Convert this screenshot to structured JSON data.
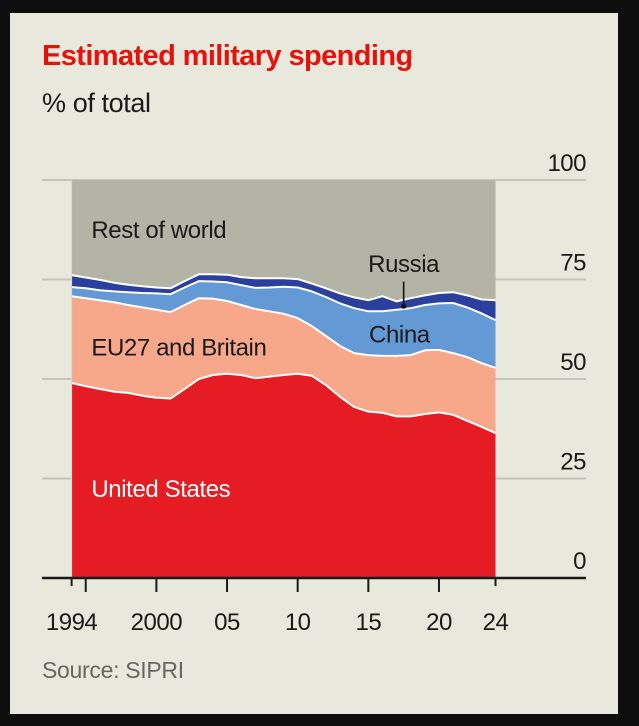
{
  "header": {
    "title": "Estimated military spending",
    "subtitle": "% of total"
  },
  "footer": {
    "source": "Source: SIPRI"
  },
  "colors": {
    "background": "#e9e8dd",
    "title": "#e3120b",
    "united_states": "#e51c24",
    "eu27_britain": "#f7a88a",
    "china": "#6399d4",
    "russia": "#2a3f9e",
    "rest_of_world": "#b3b4a6"
  },
  "chart_data": {
    "type": "area",
    "stacked": true,
    "title": "Estimated military spending",
    "subtitle": "% of total",
    "xlabel": "",
    "ylabel": "% of total",
    "x": [
      1994,
      1995,
      1996,
      1997,
      1998,
      1999,
      2000,
      2001,
      2002,
      2003,
      2004,
      2005,
      2006,
      2007,
      2008,
      2009,
      2010,
      2011,
      2012,
      2013,
      2014,
      2015,
      2016,
      2017,
      2018,
      2019,
      2020,
      2021,
      2022,
      2023,
      2024
    ],
    "xlim": [
      1994,
      2024
    ],
    "ylim": [
      0,
      100
    ],
    "y_axis_side": "right",
    "grid": true,
    "x_ticks": [
      1994,
      1995,
      2000,
      2005,
      2010,
      2015,
      2020,
      2024
    ],
    "x_tick_labels": [
      {
        "year": 1994,
        "label": "1994"
      },
      {
        "year": 2000,
        "label": "2000"
      },
      {
        "year": 2005,
        "label": "05"
      },
      {
        "year": 2010,
        "label": "10"
      },
      {
        "year": 2015,
        "label": "15"
      },
      {
        "year": 2020,
        "label": "20"
      },
      {
        "year": 2024,
        "label": "24"
      }
    ],
    "y_ticks": [
      0,
      25,
      50,
      75,
      100
    ],
    "y_tick_labels": [
      "0",
      "25",
      "50",
      "75",
      "100"
    ],
    "series": [
      {
        "name": "United States",
        "key": "united_states",
        "label_color": "#ffffff",
        "values": [
          49.0,
          48.2,
          47.5,
          46.8,
          46.5,
          45.8,
          45.3,
          45.1,
          47.5,
          50.0,
          51.0,
          51.3,
          51.0,
          50.2,
          50.6,
          51.0,
          51.3,
          50.8,
          48.5,
          45.5,
          43.0,
          41.8,
          41.5,
          40.6,
          40.6,
          41.2,
          41.6,
          41.0,
          39.5,
          38.0,
          36.4
        ]
      },
      {
        "name": "EU27 and Britain",
        "key": "eu27_britain",
        "label_color": "#1a1a1a",
        "values": [
          21.8,
          22.1,
          22.3,
          22.5,
          22.1,
          22.2,
          22.1,
          21.7,
          21.1,
          20.3,
          19.2,
          18.3,
          17.6,
          17.4,
          16.4,
          15.4,
          14.0,
          12.5,
          12.3,
          12.8,
          13.5,
          14.2,
          14.3,
          15.2,
          15.4,
          16.0,
          15.7,
          15.5,
          16.0,
          16.0,
          16.4
        ]
      },
      {
        "name": "China",
        "key": "china",
        "label_color": "#1a1a1a",
        "values": [
          2.3,
          2.5,
          2.5,
          2.7,
          3.2,
          3.6,
          4.1,
          4.5,
          4.4,
          4.3,
          4.3,
          4.7,
          5.0,
          5.3,
          6.0,
          6.8,
          7.7,
          8.7,
          9.8,
          10.7,
          11.3,
          11.0,
          11.2,
          11.6,
          11.8,
          11.4,
          11.7,
          12.6,
          12.5,
          12.5,
          12.0
        ]
      },
      {
        "name": "Russia",
        "key": "russia",
        "label_color": "#1a1a1a",
        "values": [
          3.0,
          2.7,
          2.6,
          2.2,
          1.9,
          1.7,
          1.5,
          1.5,
          1.6,
          1.7,
          1.8,
          1.9,
          2.0,
          2.4,
          2.3,
          2.1,
          2.1,
          2.0,
          2.2,
          2.5,
          2.7,
          2.8,
          3.8,
          2.1,
          2.5,
          2.4,
          2.6,
          2.7,
          3.0,
          3.5,
          5.0
        ]
      },
      {
        "name": "Rest of world",
        "key": "rest_of_world",
        "label_color": "#1a1a1a",
        "values": [
          23.9,
          24.5,
          25.1,
          25.8,
          26.3,
          26.7,
          27.0,
          27.2,
          25.4,
          23.7,
          23.7,
          23.8,
          24.4,
          24.7,
          24.7,
          24.7,
          24.9,
          26.0,
          27.2,
          28.5,
          29.5,
          30.2,
          29.2,
          30.5,
          29.7,
          29.0,
          28.4,
          28.2,
          29.0,
          30.0,
          30.2
        ]
      }
    ],
    "annotations": [
      {
        "series": "Rest of world",
        "text": "Rest of world",
        "year": 1995.4,
        "value": 87
      },
      {
        "series": "Russia",
        "text": "Russia",
        "year": 2017.5,
        "value": 78.5,
        "pointer_to_value": 68.3
      },
      {
        "series": "China",
        "text": "China",
        "year": 2017.2,
        "value": 60.8
      },
      {
        "series": "EU27 and Britain",
        "text": "EU27 and Britain",
        "year": 1995.4,
        "value": 57.5
      },
      {
        "series": "United States",
        "text": "United States",
        "year": 1995.4,
        "value": 22
      }
    ],
    "legend": "inline labels"
  }
}
